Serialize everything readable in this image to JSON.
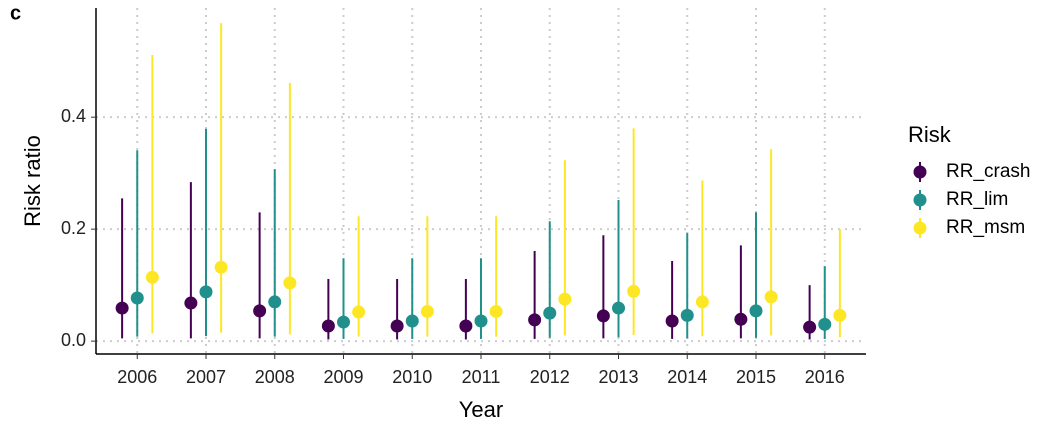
{
  "chart_data": {
    "type": "pointrange",
    "panel_label": "c",
    "x_label": "Year",
    "y_label": "Risk ratio",
    "legend_title": "Risk",
    "legend_position": "right",
    "grid": true,
    "categories": [
      "2006",
      "2007",
      "2008",
      "2009",
      "2010",
      "2011",
      "2012",
      "2013",
      "2014",
      "2015",
      "2016"
    ],
    "ylim": [
      -0.023,
      0.595
    ],
    "yticks": [
      {
        "value": 0,
        "label": "0.0"
      },
      0.2,
      0.4
    ],
    "series": [
      {
        "name": "RR_crash",
        "color": "#440154",
        "values": [
          0.059,
          0.068,
          0.054,
          0.027,
          0.027,
          0.027,
          0.038,
          0.045,
          0.036,
          0.039,
          0.025
        ],
        "lower": [
          0.005,
          0.005,
          0.005,
          0.003,
          0.003,
          0.003,
          0.004,
          0.005,
          0.004,
          0.005,
          0.003
        ],
        "upper": [
          0.255,
          0.284,
          0.23,
          0.111,
          0.111,
          0.111,
          0.161,
          0.189,
          0.143,
          0.171,
          0.1
        ]
      },
      {
        "name": "RR_lim",
        "color": "#21908c",
        "values": [
          0.077,
          0.088,
          0.07,
          0.034,
          0.036,
          0.036,
          0.05,
          0.059,
          0.046,
          0.054,
          0.03
        ],
        "lower": [
          0.008,
          0.009,
          0.008,
          0.004,
          0.004,
          0.004,
          0.006,
          0.007,
          0.005,
          0.006,
          0.004
        ],
        "upper": [
          0.341,
          0.379,
          0.307,
          0.148,
          0.148,
          0.148,
          0.214,
          0.252,
          0.193,
          0.23,
          0.134
        ]
      },
      {
        "name": "RR_msm",
        "color": "#fde725",
        "values": [
          0.114,
          0.132,
          0.104,
          0.052,
          0.053,
          0.053,
          0.075,
          0.089,
          0.07,
          0.079,
          0.046
        ],
        "lower": [
          0.014,
          0.015,
          0.012,
          0.008,
          0.008,
          0.008,
          0.01,
          0.011,
          0.009,
          0.01,
          0.007
        ],
        "upper": [
          0.511,
          0.568,
          0.461,
          0.223,
          0.223,
          0.223,
          0.323,
          0.38,
          0.287,
          0.343,
          0.2
        ]
      }
    ]
  }
}
